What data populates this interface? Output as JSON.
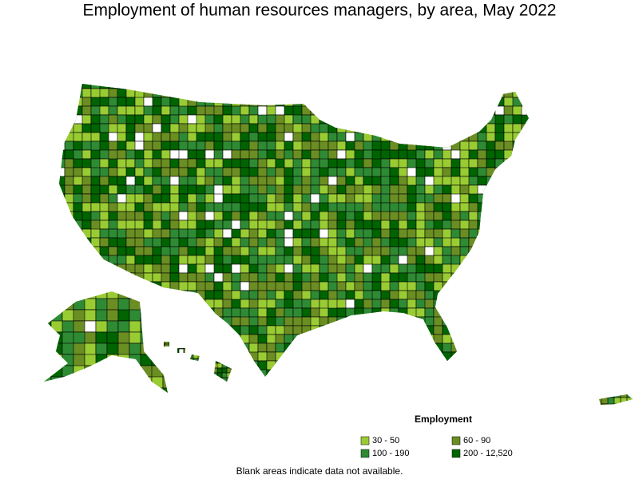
{
  "title": "Employment of human resources managers, by area, May 2022",
  "legend": {
    "title": "Employment",
    "items": [
      {
        "label": "30 - 50",
        "color": "#99cc33"
      },
      {
        "label": "60 - 90",
        "color": "#6b8e23"
      },
      {
        "label": "100 - 190",
        "color": "#2e8b34"
      },
      {
        "label": "200 - 12,520",
        "color": "#006400"
      }
    ]
  },
  "note": "Blank areas indicate data not available."
}
